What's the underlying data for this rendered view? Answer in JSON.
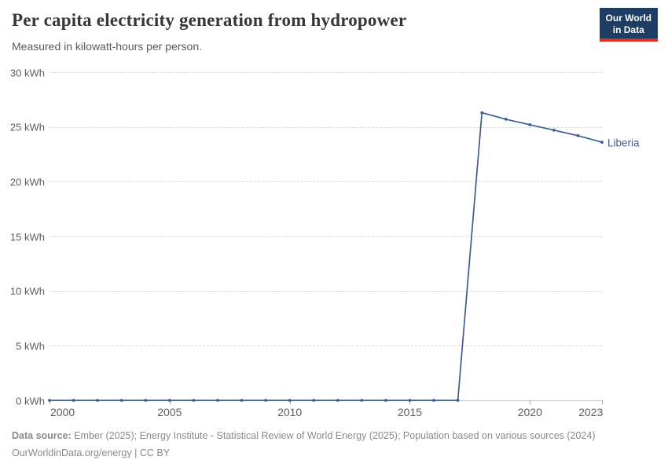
{
  "header": {
    "title": "Per capita electricity generation from hydropower",
    "subtitle": "Measured in kilowatt-hours per person.",
    "logo_line1": "Our World",
    "logo_line2": "in Data"
  },
  "footer": {
    "data_source_label": "Data source:",
    "data_source_text": "Ember (2025); Energy Institute - Statistical Review of World Energy (2025); Population based on various sources (2024)",
    "url": "OurWorldinData.org/energy",
    "separator": "|",
    "license": "CC BY"
  },
  "colors": {
    "line": "#3d5c8f",
    "grid": "#dcdcdc",
    "axis": "#c8c8c8",
    "tick_label": "#5e5e5e",
    "logo_bg": "#1d3d63",
    "logo_stripe": "#dc3128"
  },
  "chart_data": {
    "type": "line",
    "title": "Per capita electricity generation from hydropower",
    "subtitle": "Measured in kilowatt-hours per person.",
    "xlabel": "",
    "ylabel": "kilowatt-hours per person",
    "x": [
      2000,
      2001,
      2002,
      2003,
      2004,
      2005,
      2006,
      2007,
      2008,
      2009,
      2010,
      2011,
      2012,
      2013,
      2014,
      2015,
      2016,
      2017,
      2018,
      2019,
      2020,
      2021,
      2022,
      2023
    ],
    "series": [
      {
        "name": "Liberia",
        "color": "#3d5c8f",
        "values": [
          0,
          0,
          0,
          0,
          0,
          0,
          0,
          0,
          0,
          0,
          0,
          0,
          0,
          0,
          0,
          0,
          0,
          0,
          26.3,
          25.7,
          25.2,
          24.7,
          24.2,
          23.6
        ]
      }
    ],
    "x_ticks": [
      2000,
      2005,
      2010,
      2015,
      2020,
      2023
    ],
    "y_ticks": [
      0,
      5,
      10,
      15,
      20,
      25,
      30
    ],
    "y_tick_suffix": " kWh",
    "xlim": [
      2000,
      2023
    ],
    "ylim": [
      0,
      30
    ],
    "grid": "horizontal-dashed",
    "legend_position": "end-of-line",
    "end_label": "Liberia"
  }
}
